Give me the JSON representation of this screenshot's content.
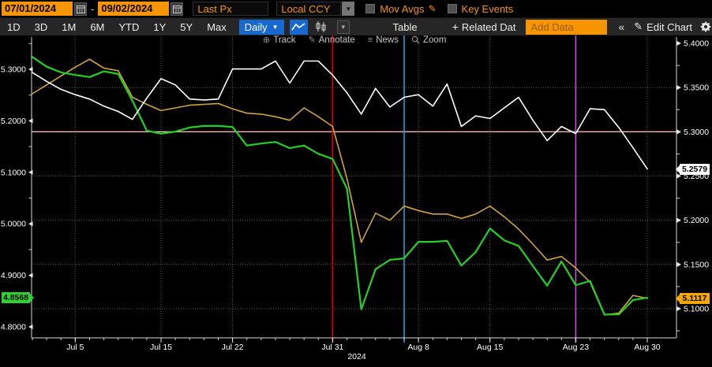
{
  "toolbar": {
    "date_from": "07/01/2024",
    "date_to": "09/02/2024",
    "range_separator": "-",
    "price_field": "Last Px",
    "currency_field": "Local CCY",
    "mov_avgs_label": "Mov Avgs",
    "key_events_label": "Key Events"
  },
  "nav": {
    "ranges": [
      "1D",
      "3D",
      "1M",
      "6M",
      "YTD",
      "1Y",
      "5Y",
      "Max"
    ],
    "period_label": "Daily",
    "table_label": "Table",
    "related_plus": "+",
    "related_label": "Related Dat",
    "add_data_placeholder": "Add Data",
    "collapse_label": "«",
    "edit_chart_label": "Edit Chart"
  },
  "icons": {
    "chevron_down": "▼",
    "pencil": "✎",
    "news": "≡",
    "track": "⊕"
  },
  "chart_toolbar": {
    "items": [
      {
        "label": "Track"
      },
      {
        "label": "Annotate"
      },
      {
        "label": "News"
      },
      {
        "label": "Zoom"
      }
    ]
  },
  "badges": {
    "green": {
      "value": "4.8568",
      "color": "#2fd32f",
      "axis": "left"
    },
    "white": {
      "value": "5.2579",
      "color": "#ffffff",
      "axis": "right"
    },
    "amber": {
      "value": "5.1117",
      "color": "#f5a800",
      "axis": "right"
    }
  },
  "colors": {
    "accent_orange": "#f79500",
    "accent_blue": "#1769cf",
    "background": "#000000"
  },
  "chart_data": {
    "type": "line",
    "title": "",
    "x": [
      "Jul 1",
      "Jul 2",
      "Jul 3",
      "Jul 5",
      "Jul 8",
      "Jul 9",
      "Jul 10",
      "Jul 11",
      "Jul 12",
      "Jul 15",
      "Jul 16",
      "Jul 17",
      "Jul 18",
      "Jul 19",
      "Jul 22",
      "Jul 23",
      "Jul 24",
      "Jul 25",
      "Jul 26",
      "Jul 29",
      "Jul 30",
      "Jul 31",
      "Aug 1",
      "Aug 2",
      "Aug 5",
      "Aug 6",
      "Aug 7",
      "Aug 8",
      "Aug 9",
      "Aug 12",
      "Aug 13",
      "Aug 14",
      "Aug 15",
      "Aug 16",
      "Aug 19",
      "Aug 20",
      "Aug 21",
      "Aug 22",
      "Aug 23",
      "Aug 26",
      "Aug 27",
      "Aug 28",
      "Aug 29",
      "Aug 30"
    ],
    "series": [
      {
        "name": "amber-line",
        "axis": "right",
        "color": "#d1a33c",
        "width": 1.6,
        "values": [
          5.343,
          5.353,
          5.363,
          5.373,
          5.382,
          5.372,
          5.369,
          5.339,
          5.331,
          5.324,
          5.327,
          5.33,
          5.331,
          5.332,
          5.326,
          5.321,
          5.32,
          5.317,
          5.313,
          5.327,
          5.317,
          5.306,
          5.247,
          5.175,
          5.208,
          5.2,
          5.216,
          5.211,
          5.207,
          5.207,
          5.202,
          5.207,
          5.216,
          5.204,
          5.19,
          5.173,
          5.155,
          5.159,
          5.146,
          5.13,
          5.093,
          5.095,
          5.115,
          5.1117
        ]
      },
      {
        "name": "green-line",
        "axis": "left",
        "color": "#25d025",
        "width": 2.2,
        "values": [
          5.324,
          5.305,
          5.294,
          5.289,
          5.285,
          5.296,
          5.291,
          5.239,
          5.181,
          5.175,
          5.179,
          5.187,
          5.19,
          5.19,
          5.188,
          5.152,
          5.156,
          5.159,
          5.147,
          5.152,
          5.136,
          5.126,
          5.068,
          4.834,
          4.912,
          4.93,
          4.933,
          4.965,
          4.965,
          4.967,
          4.919,
          4.945,
          4.991,
          4.968,
          4.957,
          4.918,
          4.88,
          4.927,
          4.881,
          4.889,
          4.824,
          4.824,
          4.852,
          4.8568
        ]
      },
      {
        "name": "white-line",
        "axis": "right",
        "color": "#ffffff",
        "width": 1.6,
        "values": [
          5.367,
          5.357,
          5.348,
          5.342,
          5.337,
          5.329,
          5.323,
          5.314,
          5.338,
          5.36,
          5.353,
          5.337,
          5.336,
          5.337,
          5.371,
          5.371,
          5.371,
          5.38,
          5.355,
          5.38,
          5.38,
          5.364,
          5.344,
          5.32,
          5.349,
          5.328,
          5.339,
          5.342,
          5.329,
          5.354,
          5.306,
          5.318,
          5.315,
          5.327,
          5.339,
          5.313,
          5.29,
          5.306,
          5.298,
          5.326,
          5.325,
          5.305,
          5.282,
          5.2579
        ]
      }
    ],
    "axes": {
      "left_labels": [
        {
          "t": "5.3000",
          "v": 5.3
        },
        {
          "t": "5.2000",
          "v": 5.2
        },
        {
          "t": "5.1000",
          "v": 5.1
        },
        {
          "t": "5.0000",
          "v": 5.0
        },
        {
          "t": "4.9000",
          "v": 4.9
        },
        {
          "t": "4.8000",
          "v": 4.8
        }
      ],
      "right_labels": [
        {
          "t": "5.4000",
          "v": 5.4
        },
        {
          "t": "5.3500",
          "v": 5.35
        },
        {
          "t": "5.3000",
          "v": 5.3
        },
        {
          "t": "5.2500",
          "v": 5.25
        },
        {
          "t": "5.2000",
          "v": 5.2
        },
        {
          "t": "5.1500",
          "v": 5.15
        },
        {
          "t": "5.1000",
          "v": 5.1
        }
      ],
      "left_minor": [
        5.35,
        5.25,
        5.15,
        5.05,
        4.95,
        4.85
      ],
      "right_minor": [
        5.375,
        5.325,
        5.275,
        5.225,
        5.175,
        5.125,
        5.075
      ],
      "h_grid_right_values": [
        5.35,
        5.25,
        5.2,
        5.15,
        5.1
      ],
      "left_range": [
        4.779,
        5.363
      ],
      "right_range": [
        5.067,
        5.407
      ],
      "grid": "dotted"
    },
    "x_ticks": [
      {
        "t": "Jul 5",
        "i": 3
      },
      {
        "t": "Jul 15",
        "i": 9
      },
      {
        "t": "Jul 22",
        "i": 14
      },
      {
        "t": "Jul 31",
        "i": 21
      },
      {
        "t": "Aug 8",
        "i": 27
      },
      {
        "t": "Aug 15",
        "i": 32
      },
      {
        "t": "Aug 23",
        "i": 38
      },
      {
        "t": "Aug 30",
        "i": 43
      }
    ],
    "year_label": "2024",
    "event_lines": [
      {
        "date": "Jul 31",
        "i": 21,
        "color": "#e60000"
      },
      {
        "date": "Aug 7",
        "i": 26,
        "color": "#1f9ce0"
      },
      {
        "date": "Aug 23",
        "i": 38,
        "color": "#c44fd0"
      }
    ],
    "hline": {
      "axis": "right",
      "value": 5.3,
      "color": "#f4b8b0"
    }
  }
}
